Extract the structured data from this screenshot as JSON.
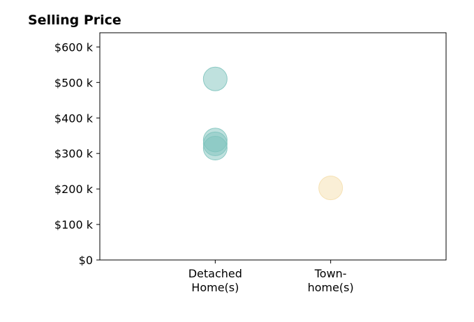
{
  "chart_data": {
    "type": "scatter",
    "title": "Selling Price",
    "xlabel": "",
    "ylabel": "",
    "categories": [
      {
        "lines": [
          "Detached",
          "Home(s)"
        ]
      },
      {
        "lines": [
          "Town-",
          "home(s)"
        ]
      }
    ],
    "xlim": [
      -1,
      2
    ],
    "ylim": [
      0,
      640000
    ],
    "yticks": [
      {
        "value": 0,
        "label": "$0"
      },
      {
        "value": 100000,
        "label": "$100 k"
      },
      {
        "value": 200000,
        "label": "$200 k"
      },
      {
        "value": 300000,
        "label": "$300 k"
      },
      {
        "value": 400000,
        "label": "$400 k"
      },
      {
        "value": 500000,
        "label": "$500 k"
      },
      {
        "value": 600000,
        "label": "$600 k"
      }
    ],
    "points": [
      {
        "category": 0,
        "value": 510000,
        "color": "#7fc4be"
      },
      {
        "category": 0,
        "value": 338000,
        "color": "#7fc4be"
      },
      {
        "category": 0,
        "value": 327000,
        "color": "#7fc4be"
      },
      {
        "category": 0,
        "value": 315000,
        "color": "#7fc4be"
      },
      {
        "category": 1,
        "value": 203000,
        "color": "#f5dfae"
      }
    ],
    "grid": false,
    "legend": "none"
  }
}
